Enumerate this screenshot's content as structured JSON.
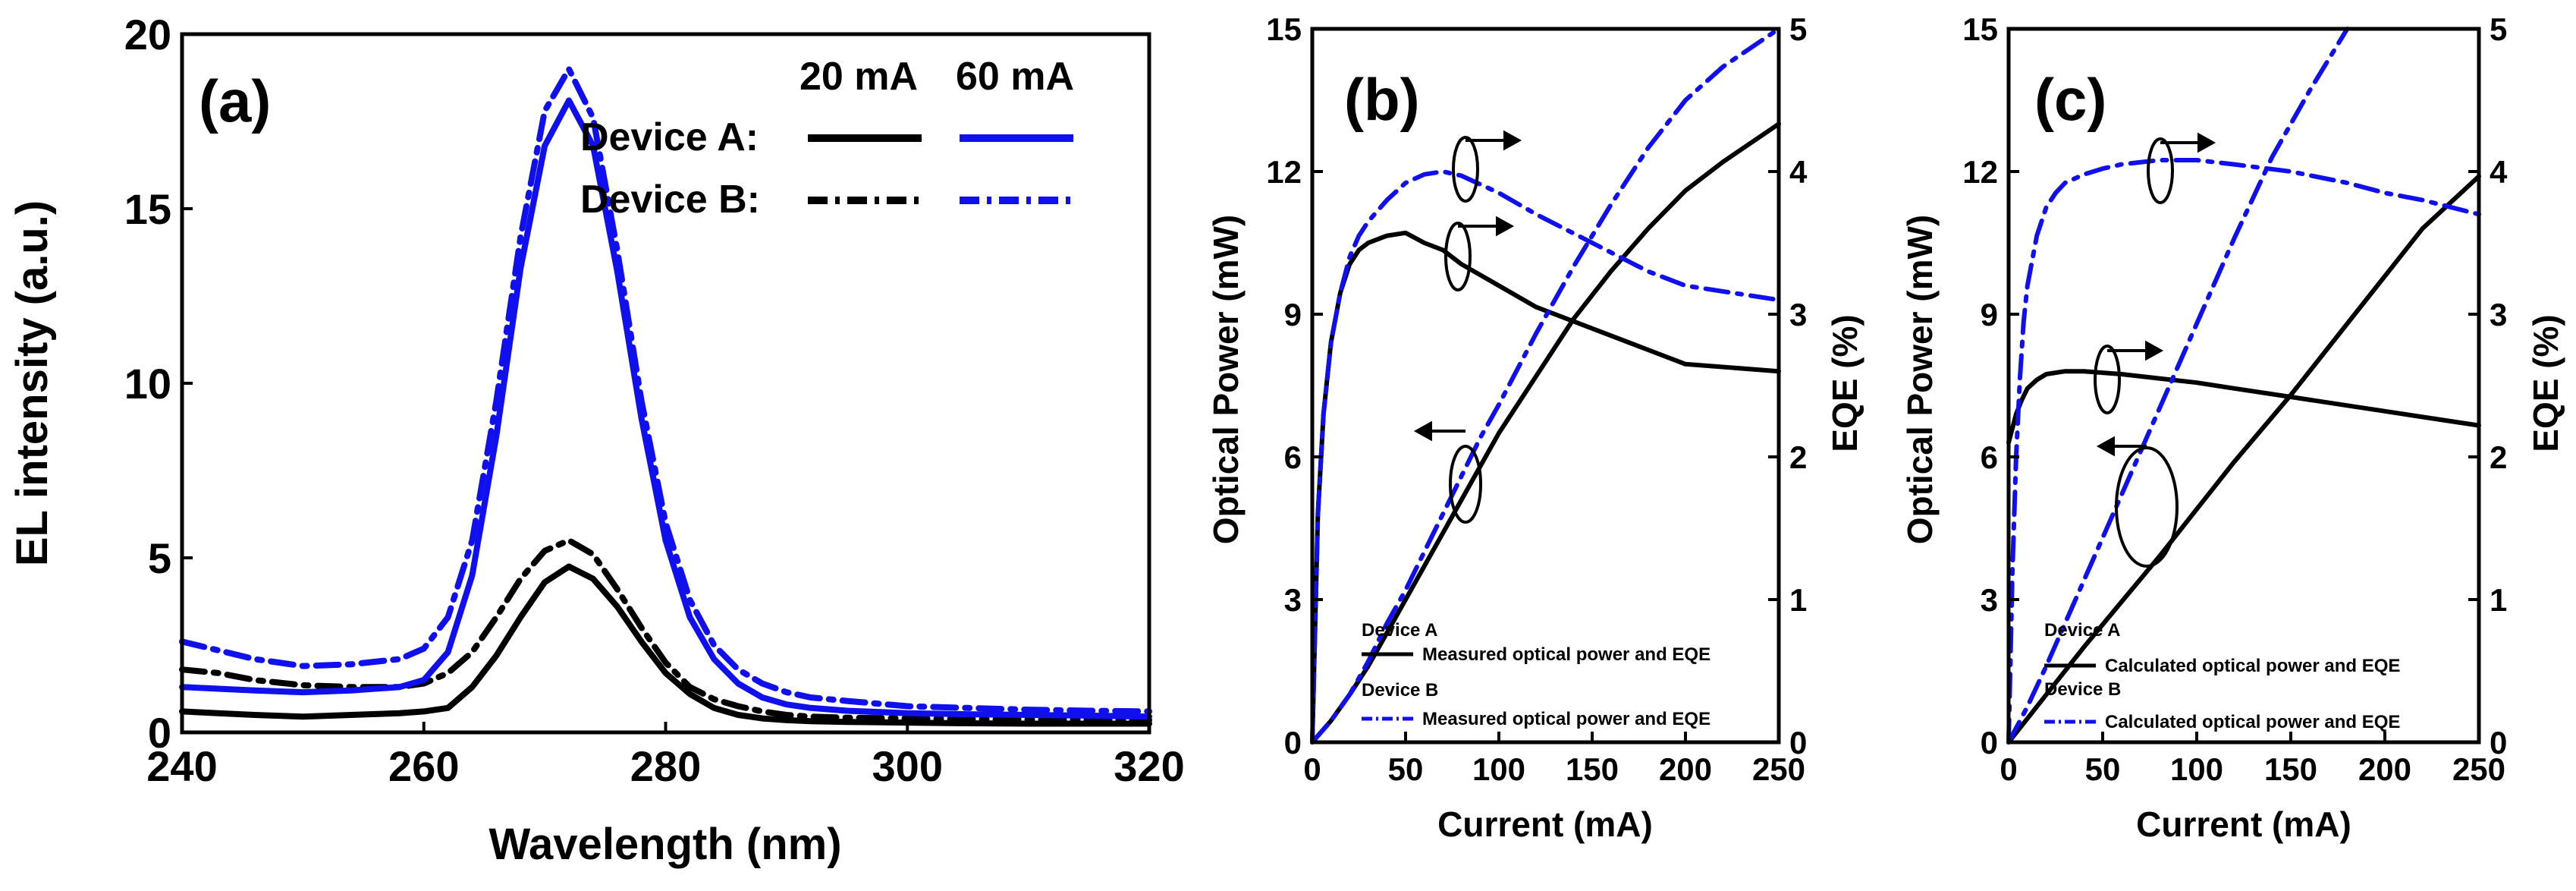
{
  "colors": {
    "black": "#000000",
    "blue": "#1010ee"
  },
  "chart_data": [
    {
      "type": "line",
      "panel_label": "(a)",
      "xlabel": "Wavelength (nm)",
      "ylabel": "EL intensity (a.u.)",
      "xlim": [
        240,
        320
      ],
      "ylim": [
        0,
        20
      ],
      "xticks": [
        240,
        260,
        280,
        300,
        320
      ],
      "yticks": [
        0,
        5,
        10,
        15,
        20
      ],
      "legend": {
        "columns": [
          "20 mA",
          "60 mA"
        ],
        "rows": [
          "Device A:",
          "Device B:"
        ],
        "position": "top-right"
      },
      "series": [
        {
          "name": "Device A 20 mA",
          "color": "#000000",
          "dash": "solid",
          "x": [
            240,
            243,
            246,
            250,
            254,
            258,
            260,
            262,
            264,
            266,
            268,
            270,
            272,
            274,
            276,
            278,
            280,
            282,
            284,
            286,
            288,
            290,
            292,
            295,
            300,
            305,
            310,
            315,
            320
          ],
          "y": [
            0.6,
            0.55,
            0.5,
            0.45,
            0.5,
            0.55,
            0.6,
            0.7,
            1.3,
            2.2,
            3.3,
            4.3,
            4.75,
            4.4,
            3.6,
            2.6,
            1.7,
            1.1,
            0.7,
            0.5,
            0.4,
            0.35,
            0.32,
            0.3,
            0.28,
            0.26,
            0.25,
            0.25,
            0.25
          ]
        },
        {
          "name": "Device B 20 mA",
          "color": "#000000",
          "dash": "dashdot",
          "x": [
            240,
            243,
            246,
            250,
            254,
            258,
            260,
            262,
            264,
            266,
            268,
            270,
            272,
            274,
            276,
            278,
            280,
            282,
            284,
            286,
            288,
            290,
            292,
            295,
            300,
            305,
            310,
            315,
            320
          ],
          "y": [
            1.8,
            1.7,
            1.5,
            1.35,
            1.3,
            1.3,
            1.4,
            1.7,
            2.3,
            3.3,
            4.4,
            5.2,
            5.5,
            5.1,
            4.1,
            3.0,
            2.0,
            1.3,
            0.95,
            0.75,
            0.6,
            0.5,
            0.45,
            0.42,
            0.4,
            0.38,
            0.37,
            0.36,
            0.35
          ]
        },
        {
          "name": "Device A 60 mA",
          "color": "#1010ee",
          "dash": "solid",
          "x": [
            240,
            243,
            246,
            250,
            254,
            258,
            260,
            262,
            264,
            266,
            268,
            270,
            272,
            274,
            276,
            278,
            280,
            282,
            284,
            286,
            288,
            290,
            292,
            295,
            300,
            305,
            310,
            315,
            320
          ],
          "y": [
            1.3,
            1.25,
            1.2,
            1.15,
            1.2,
            1.3,
            1.5,
            2.3,
            4.5,
            8.5,
            13.3,
            16.8,
            18.1,
            16.8,
            13.2,
            9.0,
            5.5,
            3.3,
            2.1,
            1.4,
            1.0,
            0.8,
            0.7,
            0.62,
            0.55,
            0.52,
            0.5,
            0.48,
            0.45
          ]
        },
        {
          "name": "Device B 60 mA",
          "color": "#1010ee",
          "dash": "dashdot",
          "x": [
            240,
            243,
            246,
            250,
            254,
            258,
            260,
            262,
            264,
            266,
            268,
            270,
            272,
            274,
            276,
            278,
            280,
            282,
            284,
            286,
            288,
            290,
            292,
            295,
            300,
            305,
            310,
            315,
            320
          ],
          "y": [
            2.6,
            2.35,
            2.1,
            1.9,
            1.95,
            2.1,
            2.4,
            3.3,
            5.5,
            9.5,
            14.2,
            17.8,
            19.0,
            17.6,
            13.8,
            9.5,
            6.0,
            3.8,
            2.5,
            1.8,
            1.4,
            1.15,
            1.0,
            0.9,
            0.75,
            0.7,
            0.65,
            0.62,
            0.6
          ]
        }
      ]
    },
    {
      "type": "line",
      "panel_label": "(b)",
      "xlabel": "Current (mA)",
      "ylabel": "Optical Power (mW)",
      "ylabel_right": "EQE (%)",
      "xlim": [
        0,
        250
      ],
      "ylim": [
        0,
        15
      ],
      "ylim_right": [
        0,
        5
      ],
      "xticks": [
        0,
        50,
        100,
        150,
        200,
        250
      ],
      "yticks": [
        0,
        3,
        6,
        9,
        12,
        15
      ],
      "yticks_right": [
        0,
        1,
        2,
        3,
        4,
        5
      ],
      "legend": {
        "entries": [
          {
            "group": "Device A",
            "label": "Measured optical power and EQE",
            "color": "#000000",
            "dash": "solid"
          },
          {
            "group": "Device B",
            "label": "Measured optical power and EQE",
            "color": "#1010ee",
            "dash": "dashdot"
          }
        ],
        "position": "bottom-left"
      },
      "annotations": [
        "arrow-right EQE (A)",
        "arrow-right EQE (B)",
        "arrow-left optical power"
      ],
      "series": [
        {
          "name": "Device A optical power",
          "axis": "left",
          "color": "#000000",
          "dash": "solid",
          "x": [
            0,
            10,
            20,
            30,
            40,
            50,
            60,
            70,
            80,
            90,
            100,
            120,
            140,
            160,
            180,
            200,
            220,
            250
          ],
          "y": [
            0,
            0.45,
            1.0,
            1.6,
            2.3,
            3.0,
            3.7,
            4.4,
            5.1,
            5.8,
            6.5,
            7.7,
            8.9,
            9.9,
            10.8,
            11.6,
            12.2,
            13.0
          ]
        },
        {
          "name": "Device A EQE",
          "axis": "right",
          "color": "#000000",
          "dash": "solid",
          "x": [
            0,
            3,
            6,
            10,
            15,
            20,
            25,
            30,
            40,
            50,
            60,
            70,
            80,
            100,
            120,
            150,
            180,
            200,
            250
          ],
          "y": [
            0,
            1.6,
            2.3,
            2.8,
            3.15,
            3.35,
            3.45,
            3.5,
            3.55,
            3.57,
            3.5,
            3.45,
            3.35,
            3.2,
            3.05,
            2.9,
            2.75,
            2.65,
            2.6
          ]
        },
        {
          "name": "Device B optical power",
          "axis": "left",
          "color": "#1010ee",
          "dash": "dashdot",
          "x": [
            0,
            10,
            20,
            30,
            40,
            50,
            60,
            70,
            80,
            90,
            100,
            120,
            140,
            160,
            180,
            200,
            220,
            250
          ],
          "y": [
            0,
            0.45,
            1.0,
            1.7,
            2.5,
            3.2,
            4.0,
            4.8,
            5.6,
            6.4,
            7.1,
            8.6,
            10.0,
            11.3,
            12.5,
            13.5,
            14.2,
            15.0
          ]
        },
        {
          "name": "Device B EQE",
          "axis": "right",
          "color": "#1010ee",
          "dash": "dashdot",
          "x": [
            0,
            3,
            6,
            10,
            15,
            20,
            25,
            30,
            40,
            50,
            60,
            70,
            80,
            100,
            120,
            150,
            180,
            200,
            250
          ],
          "y": [
            0,
            1.6,
            2.3,
            2.8,
            3.15,
            3.4,
            3.55,
            3.65,
            3.8,
            3.92,
            3.98,
            4.0,
            3.97,
            3.85,
            3.7,
            3.5,
            3.3,
            3.2,
            3.1
          ]
        }
      ]
    },
    {
      "type": "line",
      "panel_label": "(c)",
      "xlabel": "Current (mA)",
      "ylabel": "Optical Power (mW)",
      "ylabel_right": "EQE (%)",
      "xlim": [
        0,
        250
      ],
      "ylim": [
        0,
        15
      ],
      "ylim_right": [
        0,
        5
      ],
      "xticks": [
        0,
        50,
        100,
        150,
        200,
        250
      ],
      "yticks": [
        0,
        3,
        6,
        9,
        12,
        15
      ],
      "yticks_right": [
        0,
        1,
        2,
        3,
        4,
        5
      ],
      "legend": {
        "entries": [
          {
            "group": "Device A",
            "label": "Calculated optical power and EQE",
            "color": "#000000",
            "dash": "solid"
          },
          {
            "group": "Device B",
            "label": "Calculated optical power and EQE",
            "color": "#1010ee",
            "dash": "dashdot"
          }
        ],
        "position": "bottom-left"
      },
      "annotations": [
        "arrow-right EQE (B)",
        "arrow-right EQE (A)",
        "arrow-left optical power"
      ],
      "series": [
        {
          "name": "Device A optical power",
          "axis": "left",
          "color": "#000000",
          "dash": "solid",
          "x": [
            0,
            10,
            20,
            30,
            40,
            60,
            80,
            100,
            120,
            150,
            180,
            200,
            220,
            250
          ],
          "y": [
            0,
            0.5,
            1.0,
            1.5,
            2.0,
            2.95,
            3.9,
            4.9,
            5.9,
            7.3,
            8.8,
            9.8,
            10.8,
            11.9
          ]
        },
        {
          "name": "Device A EQE",
          "axis": "right",
          "color": "#000000",
          "dash": "solid",
          "x": [
            0,
            2,
            4,
            7,
            10,
            15,
            20,
            30,
            40,
            60,
            80,
            100,
            120,
            150,
            180,
            200,
            220,
            250
          ],
          "y": [
            2.1,
            2.2,
            2.3,
            2.4,
            2.48,
            2.54,
            2.58,
            2.6,
            2.6,
            2.58,
            2.55,
            2.52,
            2.48,
            2.42,
            2.36,
            2.32,
            2.28,
            2.22
          ]
        },
        {
          "name": "Device B optical power",
          "axis": "left",
          "color": "#1010ee",
          "dash": "dashdot",
          "x": [
            0,
            10,
            20,
            30,
            40,
            50,
            60,
            70,
            80,
            100,
            120,
            140,
            160,
            180
          ],
          "y": [
            0,
            0.75,
            1.6,
            2.5,
            3.4,
            4.3,
            5.2,
            6.1,
            7.0,
            8.8,
            10.6,
            12.3,
            13.7,
            15.0
          ]
        },
        {
          "name": "Device B EQE",
          "axis": "right",
          "color": "#1010ee",
          "dash": "dashdot",
          "x": [
            0,
            2,
            4,
            6,
            8,
            10,
            15,
            20,
            25,
            30,
            40,
            50,
            60,
            80,
            100,
            120,
            150,
            180,
            200,
            220,
            250
          ],
          "y": [
            0,
            1.2,
            2.0,
            2.55,
            2.95,
            3.2,
            3.55,
            3.75,
            3.85,
            3.92,
            3.98,
            4.02,
            4.05,
            4.08,
            4.08,
            4.05,
            4.0,
            3.92,
            3.85,
            3.8,
            3.7
          ]
        }
      ]
    }
  ]
}
